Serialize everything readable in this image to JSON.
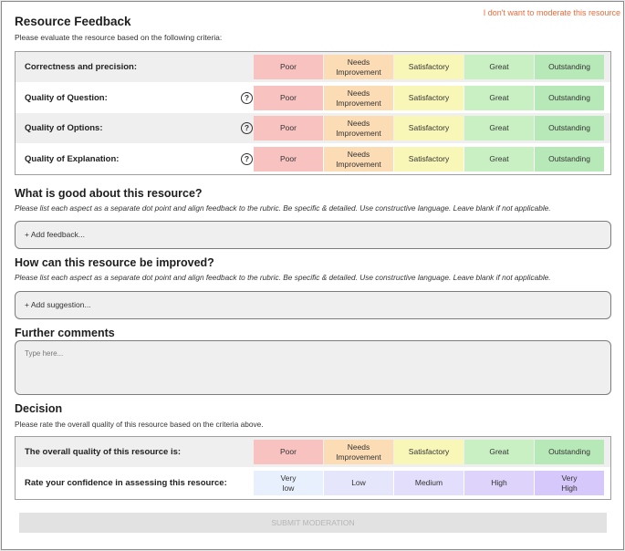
{
  "header": {
    "title": "Resource Feedback",
    "subtitle": "Please evaluate the resource based on the following criteria:",
    "skip_link": "I don't want to moderate this resource"
  },
  "rating_options": [
    "Poor",
    "Needs\nImprovement",
    "Satisfactory",
    "Great",
    "Outstanding"
  ],
  "rating_colors": [
    "#f8c2c0",
    "#fbdcb5",
    "#f8f7b7",
    "#c8f0c2",
    "#b7e8b7"
  ],
  "criteria": {
    "rows": [
      {
        "label": "Correctness and precision:",
        "help": false
      },
      {
        "label": "Quality of Question:",
        "help": true
      },
      {
        "label": "Quality of Options:",
        "help": true
      },
      {
        "label": "Quality of Explanation:",
        "help": true
      }
    ]
  },
  "good": {
    "heading": "What is good about this resource?",
    "hint": "Please list each aspect as a separate dot point and align feedback to the rubric. Be specific & detailed. Use constructive language. Leave blank if not applicable.",
    "add_label": "+ Add feedback..."
  },
  "improve": {
    "heading": "How can this resource be improved?",
    "hint": "Please list each aspect as a separate dot point and align feedback to the rubric. Be specific & detailed. Use constructive language. Leave blank if not applicable.",
    "add_label": "+ Add suggestion..."
  },
  "comments": {
    "heading": "Further comments",
    "placeholder": "Type here..."
  },
  "decision": {
    "heading": "Decision",
    "subtitle": "Please rate the overall quality of this resource based on the criteria above.",
    "overall_label": "The overall quality of this resource is:",
    "confidence_label": "Rate your confidence in assessing this resource:",
    "confidence_options": [
      "Very\nlow",
      "Low",
      "Medium",
      "High",
      "Very\nHigh"
    ],
    "confidence_colors": [
      "#e9f0fd",
      "#e5e6fb",
      "#e2defc",
      "#ddd3fb",
      "#d7c8fb"
    ]
  },
  "submit_label": "SUBMIT MODERATION",
  "icons": {
    "help": "question-circle-icon"
  }
}
